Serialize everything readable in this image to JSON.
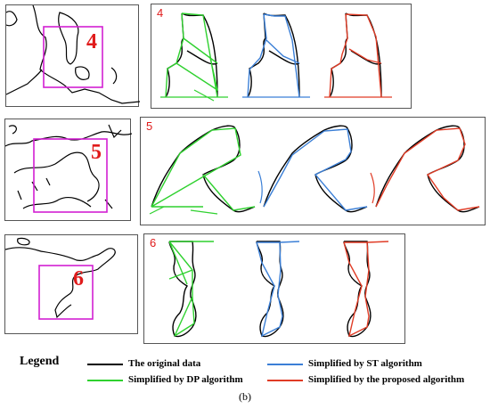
{
  "colors": {
    "original": "#000000",
    "dp": "#2fd12f",
    "st": "#3b7fd6",
    "proposed": "#e03c26",
    "region_box": "#d21fd2",
    "region_label": "#e01b1b",
    "panel_label": "#e01b1b"
  },
  "rows": [
    {
      "region_label": "4",
      "panel_number": "4"
    },
    {
      "region_label": "5",
      "panel_number": "5"
    },
    {
      "region_label": "6",
      "panel_number": "6"
    }
  ],
  "legend": {
    "title": "Legend",
    "items": [
      {
        "key": "original",
        "label": "The original data",
        "color": "#000000"
      },
      {
        "key": "st",
        "label": "Simplified by ST algorithm",
        "color": "#3b7fd6"
      },
      {
        "key": "dp",
        "label": "Simplified by DP algorithm",
        "color": "#2fd12f"
      },
      {
        "key": "proposed",
        "label": "Simplified by the proposed algorithm",
        "color": "#e03c26"
      }
    ]
  },
  "caption": "(b)"
}
